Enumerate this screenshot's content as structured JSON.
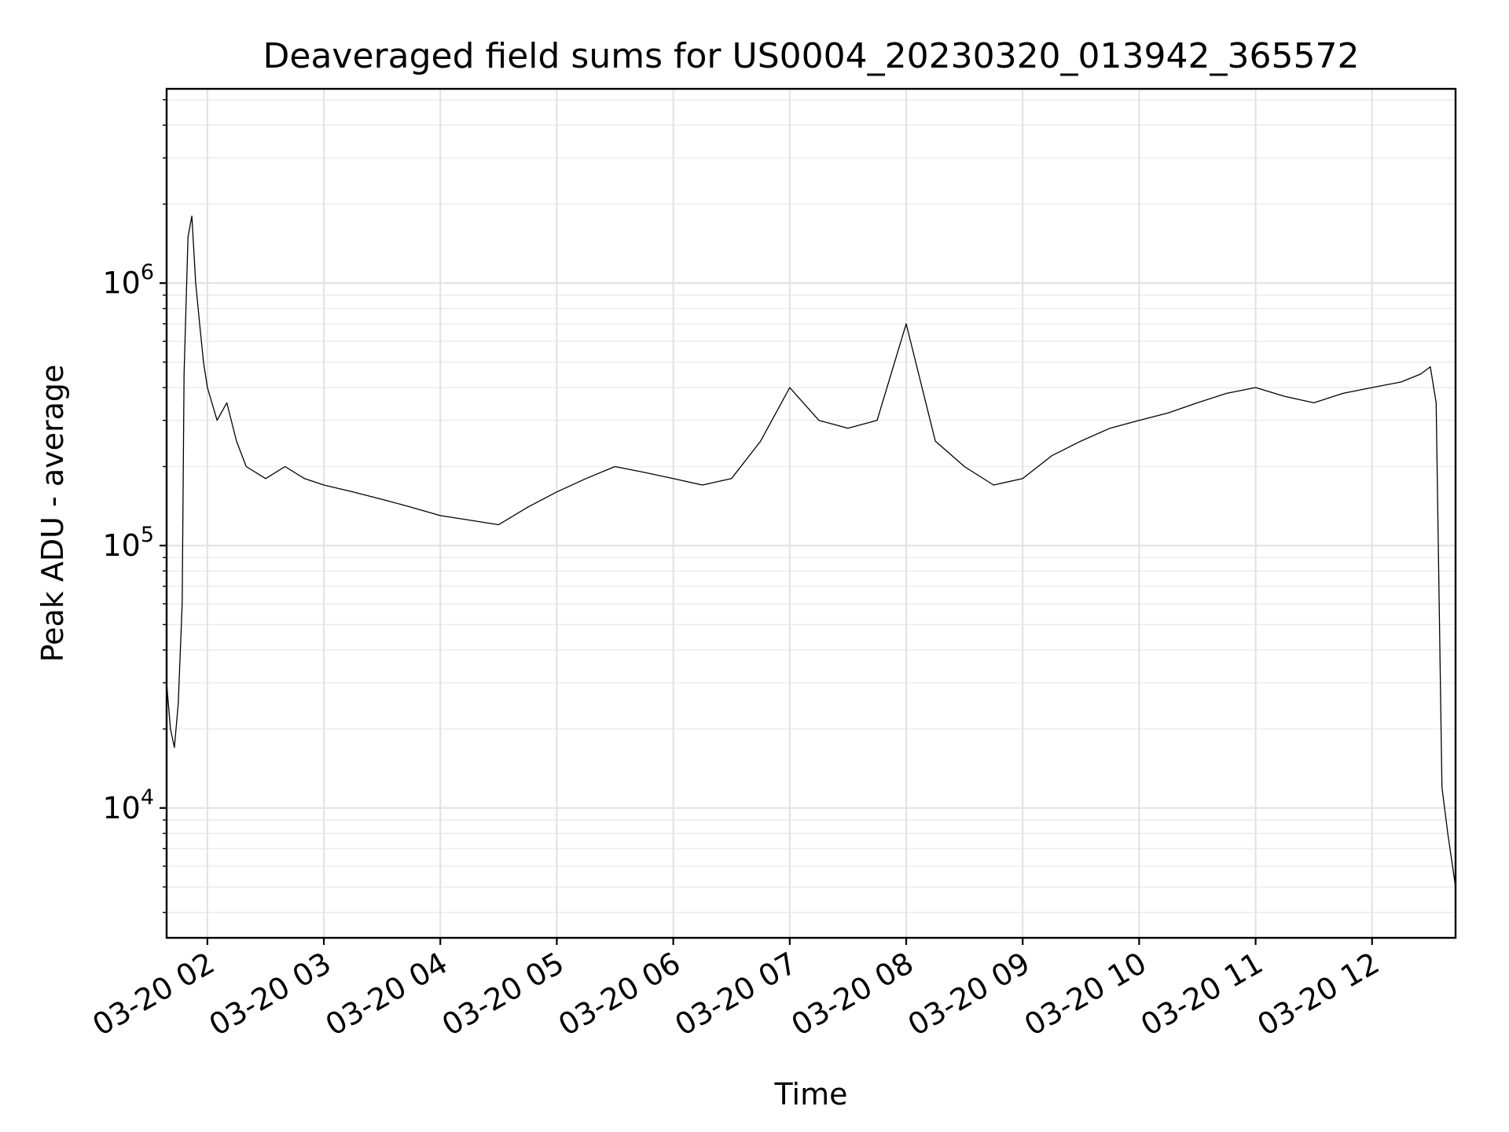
{
  "chart_data": {
    "type": "line",
    "title": "Deaveraged field sums for US0004_20230320_013942_365572",
    "xlabel": "Time",
    "ylabel": "Peak ADU - average",
    "yscale": "log",
    "ylim": [
      3200,
      5500000
    ],
    "xlim": [
      "2023-03-20 01:39",
      "2023-03-20 12:43"
    ],
    "grid": true,
    "line_color": "#000000",
    "x_ticks": [
      {
        "value": "2023-03-20 02:00",
        "label": "03-20 02"
      },
      {
        "value": "2023-03-20 03:00",
        "label": "03-20 03"
      },
      {
        "value": "2023-03-20 04:00",
        "label": "03-20 04"
      },
      {
        "value": "2023-03-20 05:00",
        "label": "03-20 05"
      },
      {
        "value": "2023-03-20 06:00",
        "label": "03-20 06"
      },
      {
        "value": "2023-03-20 07:00",
        "label": "03-20 07"
      },
      {
        "value": "2023-03-20 08:00",
        "label": "03-20 08"
      },
      {
        "value": "2023-03-20 09:00",
        "label": "03-20 09"
      },
      {
        "value": "2023-03-20 10:00",
        "label": "03-20 10"
      },
      {
        "value": "2023-03-20 11:00",
        "label": "03-20 11"
      },
      {
        "value": "2023-03-20 12:00",
        "label": "03-20 12"
      }
    ],
    "y_ticks": [
      {
        "value": 10000,
        "base": "10",
        "exp": "4"
      },
      {
        "value": 100000,
        "base": "10",
        "exp": "5"
      },
      {
        "value": 1000000,
        "base": "10",
        "exp": "6"
      }
    ],
    "series": [
      {
        "x": [
          "2023-03-20 01:39",
          "2023-03-20 01:41",
          "2023-03-20 01:43",
          "2023-03-20 01:45",
          "2023-03-20 01:47",
          "2023-03-20 01:48",
          "2023-03-20 01:50",
          "2023-03-20 01:52",
          "2023-03-20 01:54",
          "2023-03-20 01:56",
          "2023-03-20 01:58",
          "2023-03-20 02:00",
          "2023-03-20 02:05",
          "2023-03-20 02:10",
          "2023-03-20 02:15",
          "2023-03-20 02:20",
          "2023-03-20 02:30",
          "2023-03-20 02:40",
          "2023-03-20 02:50",
          "2023-03-20 03:00",
          "2023-03-20 03:15",
          "2023-03-20 03:30",
          "2023-03-20 03:45",
          "2023-03-20 04:00",
          "2023-03-20 04:15",
          "2023-03-20 04:30",
          "2023-03-20 04:45",
          "2023-03-20 05:00",
          "2023-03-20 05:15",
          "2023-03-20 05:30",
          "2023-03-20 05:45",
          "2023-03-20 06:00",
          "2023-03-20 06:15",
          "2023-03-20 06:30",
          "2023-03-20 06:45",
          "2023-03-20 07:00",
          "2023-03-20 07:15",
          "2023-03-20 07:30",
          "2023-03-20 07:45",
          "2023-03-20 08:00",
          "2023-03-20 08:15",
          "2023-03-20 08:30",
          "2023-03-20 08:45",
          "2023-03-20 09:00",
          "2023-03-20 09:15",
          "2023-03-20 09:30",
          "2023-03-20 09:45",
          "2023-03-20 10:00",
          "2023-03-20 10:15",
          "2023-03-20 10:30",
          "2023-03-20 10:45",
          "2023-03-20 11:00",
          "2023-03-20 11:15",
          "2023-03-20 11:30",
          "2023-03-20 11:45",
          "2023-03-20 12:00",
          "2023-03-20 12:15",
          "2023-03-20 12:25",
          "2023-03-20 12:30",
          "2023-03-20 12:33",
          "2023-03-20 12:36",
          "2023-03-20 12:39",
          "2023-03-20 12:43"
        ],
        "y": [
          30000,
          20000,
          17000,
          25000,
          60000,
          450000,
          1500000,
          1800000,
          1000000,
          700000,
          500000,
          400000,
          300000,
          350000,
          250000,
          200000,
          180000,
          200000,
          180000,
          170000,
          160000,
          150000,
          140000,
          130000,
          125000,
          120000,
          140000,
          160000,
          180000,
          200000,
          190000,
          180000,
          170000,
          180000,
          250000,
          400000,
          300000,
          280000,
          300000,
          700000,
          250000,
          200000,
          170000,
          180000,
          220000,
          250000,
          280000,
          300000,
          320000,
          350000,
          380000,
          400000,
          370000,
          350000,
          380000,
          400000,
          420000,
          450000,
          480000,
          350000,
          12000,
          8000,
          5000
        ]
      }
    ]
  }
}
